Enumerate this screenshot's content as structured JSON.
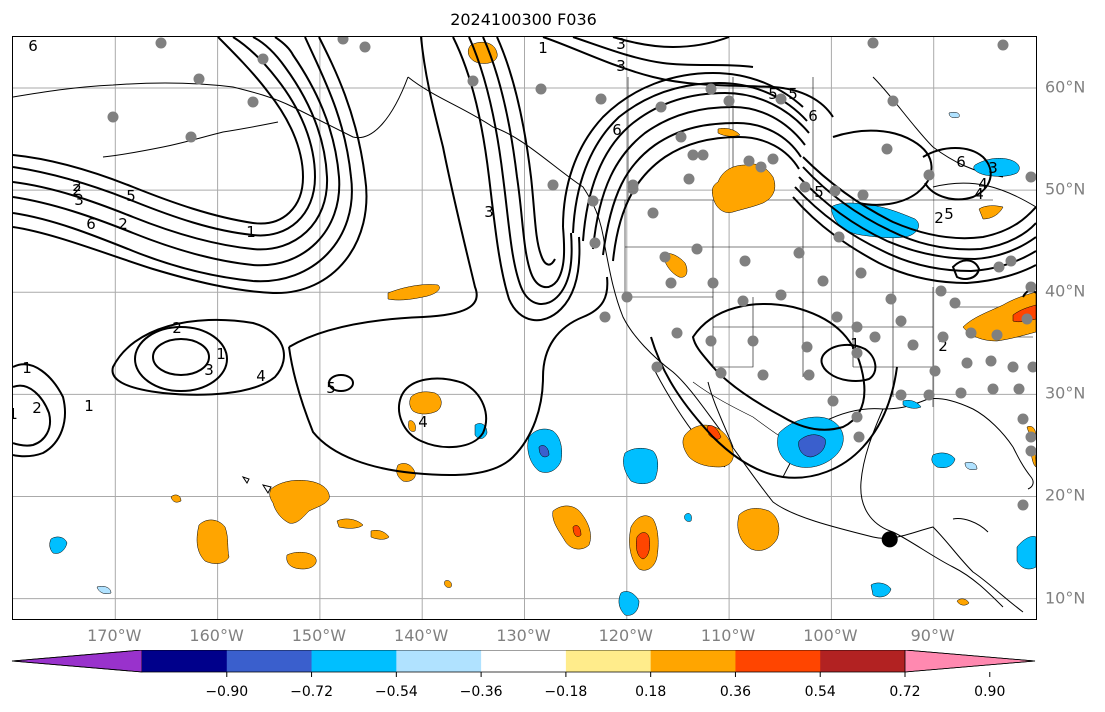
{
  "title": "2024100300 F036",
  "map": {
    "lon_labels": [
      {
        "text": "170°W",
        "lon": -170
      },
      {
        "text": "160°W",
        "lon": -160
      },
      {
        "text": "150°W",
        "lon": -150
      },
      {
        "text": "140°W",
        "lon": -140
      },
      {
        "text": "130°W",
        "lon": -130
      },
      {
        "text": "120°W",
        "lon": -120
      },
      {
        "text": "110°W",
        "lon": -110
      },
      {
        "text": "100°W",
        "lon": -100
      },
      {
        "text": "90°W",
        "lon": -90
      }
    ],
    "lat_labels": [
      {
        "text": "60°N",
        "lat": 60
      },
      {
        "text": "50°N",
        "lat": 50
      },
      {
        "text": "40°N",
        "lat": 40
      },
      {
        "text": "30°N",
        "lat": 30
      },
      {
        "text": "20°N",
        "lat": 20
      },
      {
        "text": "10°N",
        "lat": 10
      }
    ],
    "lon_range": [
      -180,
      -80
    ],
    "lat_range": [
      8,
      65
    ],
    "grid": true,
    "contour_labels": [
      "6",
      "3",
      "2",
      "1",
      "6",
      "5",
      "3",
      "2",
      "1",
      "3",
      "2",
      "1",
      "2",
      "3",
      "4",
      "1",
      "2",
      "1",
      "1",
      "5",
      "4",
      "3",
      "6",
      "5",
      "5",
      "6",
      "5",
      "4",
      "3",
      "4",
      "6",
      "5",
      "2",
      "1",
      "2"
    ],
    "marker": {
      "lon": -94.3,
      "lat": 15.8,
      "color": "#000000"
    }
  },
  "colorbar": {
    "colors": [
      "#9932CC",
      "#00008B",
      "#3A5FCD",
      "#00BFFF",
      "#B0E2FF",
      "#FFFFFF",
      "#FFEC8B",
      "#FFA500",
      "#FF4500",
      "#B22222",
      "#FF89B0"
    ],
    "tick_labels": [
      "−0.90",
      "−0.72",
      "−0.54",
      "−0.36",
      "−0.18",
      "0.18",
      "0.36",
      "0.54",
      "0.72",
      "0.90"
    ]
  },
  "colors": {
    "station_dot": "#808080",
    "contour": "#000000",
    "grid": "#aaaaaa",
    "label": "#808080"
  }
}
